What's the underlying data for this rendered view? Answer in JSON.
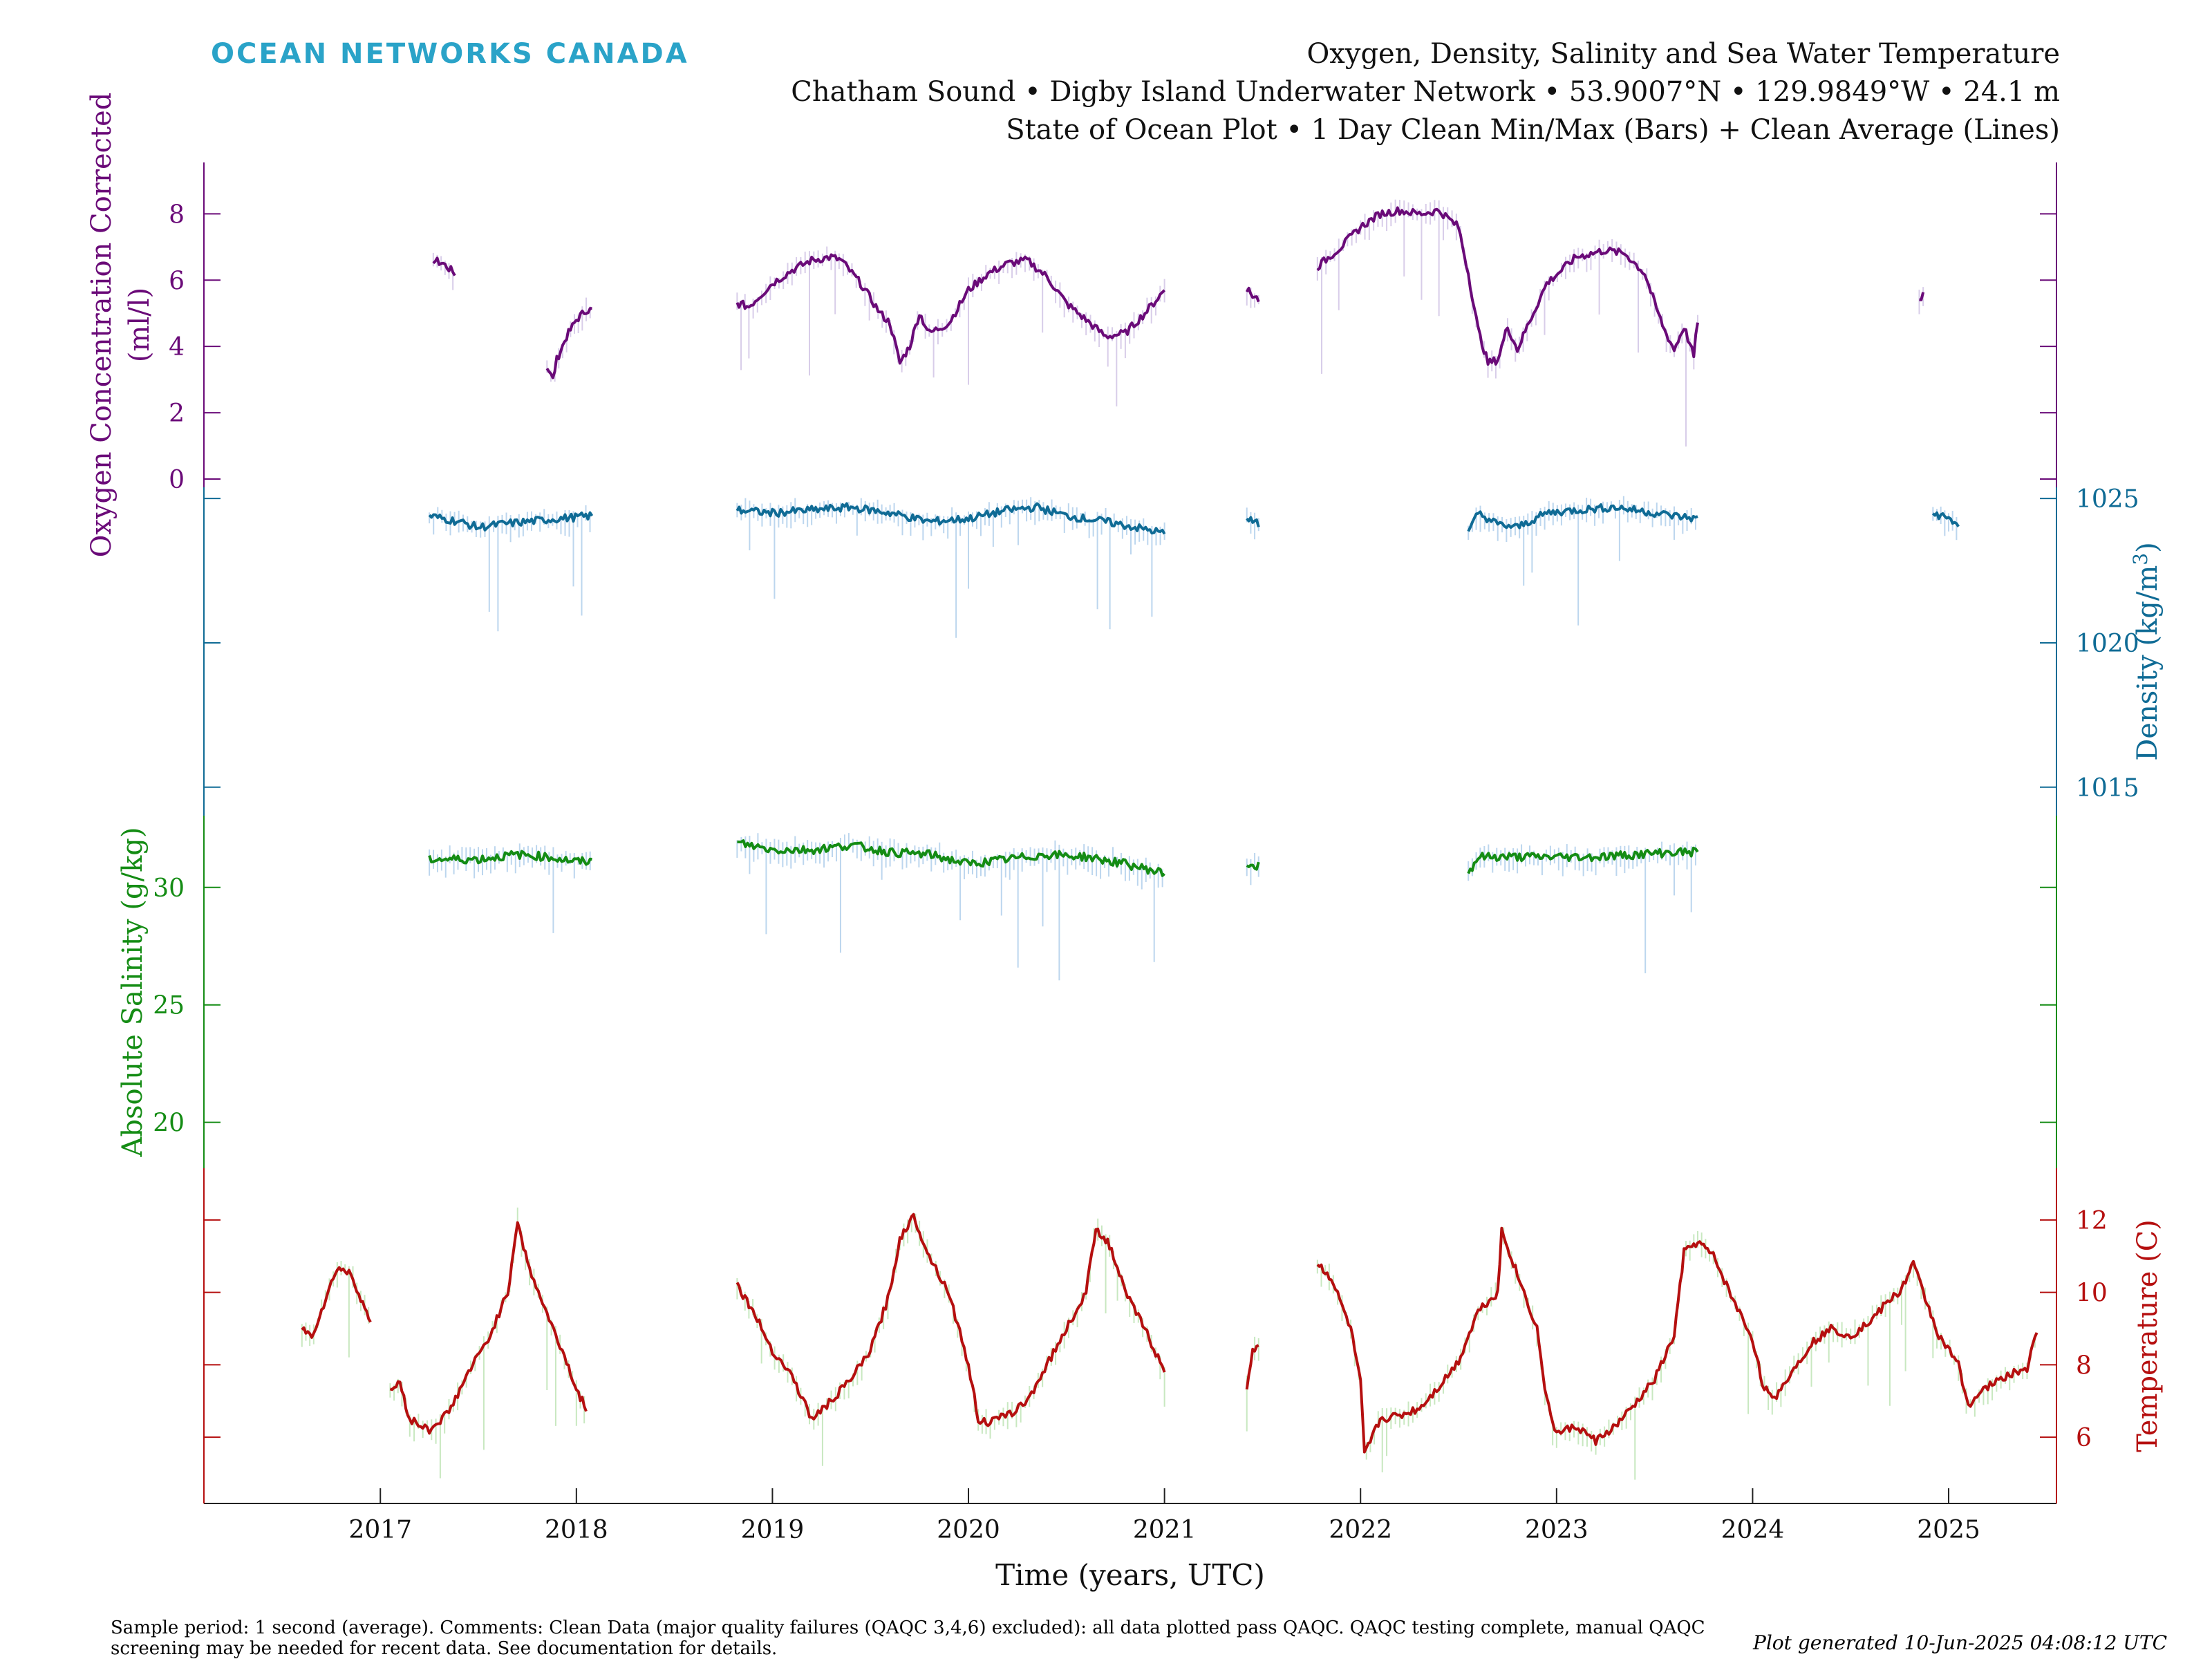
{
  "brand": "OCEAN NETWORKS CANADA",
  "titles": [
    "Oxygen, Density, Salinity and Sea Water Temperature",
    "Chatham Sound • Digby Island Underwater Network • 53.9007°N • 129.9849°W • 24.1 m",
    "State of Ocean Plot • 1 Day Clean Min/Max (Bars) + Clean Average (Lines)"
  ],
  "footer": "Sample period: 1 second (average). Comments: Clean Data (major quality failures (QAQC 3,4,6) excluded): all data plotted pass QAQC. QAQC testing complete, manual QAQC screening may be needed for recent data. See documentation for details.",
  "generated": "Plot generated 10-Jun-2025 04:08:12 UTC",
  "colors": {
    "oxygen": "#6a0a78",
    "density": "#0f6b95",
    "salinity": "#148c14",
    "temperature": "#b50f0f",
    "bars_blue": "#bcd6ee",
    "bars_lavender": "#d8cde9",
    "bars_green": "#c8e8c0"
  },
  "chart_data": {
    "type": "line",
    "xlabel": "Time (years, UTC)",
    "xlim": [
      2016.1,
      2025.55
    ],
    "x_ticks": [
      "2017",
      "2018",
      "2019",
      "2020",
      "2021",
      "2022",
      "2023",
      "2024",
      "2025"
    ],
    "series": [
      {
        "name": "Oxygen Concentration Corrected",
        "axis_label": [
          "Oxygen Concentration Corrected",
          "(ml/l)"
        ],
        "axis_side": "left",
        "ylim": [
          0,
          9.3
        ],
        "ticks": [
          0,
          2,
          4,
          6,
          8
        ],
        "segments": [
          [
            [
              2017.27,
              6.6
            ],
            [
              2017.32,
              6.5
            ],
            [
              2017.38,
              6.2
            ]
          ],
          [
            [
              2017.85,
              3.4
            ],
            [
              2017.88,
              3.0
            ],
            [
              2017.9,
              3.6
            ],
            [
              2017.95,
              4.3
            ],
            [
              2018.0,
              4.8
            ],
            [
              2018.05,
              5.1
            ],
            [
              2018.08,
              5.1
            ]
          ],
          [
            [
              2018.82,
              5.3
            ],
            [
              2018.88,
              5.2
            ],
            [
              2019.0,
              5.9
            ],
            [
              2019.1,
              6.3
            ],
            [
              2019.2,
              6.6
            ],
            [
              2019.3,
              6.7
            ],
            [
              2019.35,
              6.6
            ],
            [
              2019.45,
              5.9
            ],
            [
              2019.55,
              5.0
            ],
            [
              2019.6,
              4.7
            ],
            [
              2019.65,
              3.5
            ],
            [
              2019.7,
              4.0
            ],
            [
              2019.75,
              5.0
            ],
            [
              2019.8,
              4.4
            ],
            [
              2019.9,
              4.7
            ],
            [
              2020.0,
              5.7
            ],
            [
              2020.1,
              6.2
            ],
            [
              2020.2,
              6.5
            ],
            [
              2020.3,
              6.6
            ],
            [
              2020.4,
              6.1
            ],
            [
              2020.5,
              5.3
            ],
            [
              2020.6,
              4.8
            ],
            [
              2020.7,
              4.3
            ],
            [
              2020.8,
              4.4
            ],
            [
              2020.9,
              5.0
            ],
            [
              2021.0,
              5.7
            ]
          ],
          [
            [
              2021.42,
              5.7
            ],
            [
              2021.46,
              5.5
            ],
            [
              2021.48,
              5.4
            ]
          ],
          [
            [
              2021.78,
              6.4
            ],
            [
              2021.9,
              7.0
            ],
            [
              2022.0,
              7.6
            ],
            [
              2022.1,
              8.0
            ],
            [
              2022.2,
              8.1
            ],
            [
              2022.3,
              8.0
            ],
            [
              2022.4,
              8.1
            ],
            [
              2022.5,
              7.6
            ],
            [
              2022.55,
              6.2
            ],
            [
              2022.6,
              4.5
            ],
            [
              2022.65,
              3.5
            ],
            [
              2022.7,
              3.6
            ],
            [
              2022.75,
              4.6
            ],
            [
              2022.8,
              3.9
            ],
            [
              2022.85,
              4.6
            ],
            [
              2022.95,
              5.9
            ],
            [
              2023.1,
              6.7
            ],
            [
              2023.25,
              6.9
            ],
            [
              2023.35,
              6.8
            ],
            [
              2023.45,
              6.2
            ],
            [
              2023.5,
              5.3
            ],
            [
              2023.55,
              4.5
            ],
            [
              2023.6,
              3.9
            ],
            [
              2023.65,
              4.6
            ],
            [
              2023.7,
              3.7
            ],
            [
              2023.72,
              4.8
            ]
          ],
          [
            [
              2024.85,
              5.4
            ],
            [
              2024.87,
              5.6
            ]
          ]
        ]
      },
      {
        "name": "Density",
        "axis_label": [
          "Density (kg/m",
          "3",
          ")"
        ],
        "axis_side": "right",
        "ylim": [
          1014.3,
          1025.1
        ],
        "ticks": [
          1015,
          1020,
          1025
        ],
        "segments": [
          [
            [
              2017.25,
              1024.4
            ],
            [
              2017.4,
              1024.2
            ],
            [
              2017.5,
              1024.0
            ],
            [
              2017.6,
              1024.1
            ],
            [
              2017.75,
              1024.2
            ],
            [
              2017.9,
              1024.3
            ],
            [
              2018.08,
              1024.4
            ]
          ],
          [
            [
              2018.82,
              1024.6
            ],
            [
              2019.0,
              1024.5
            ],
            [
              2019.2,
              1024.6
            ],
            [
              2019.4,
              1024.7
            ],
            [
              2019.6,
              1024.5
            ],
            [
              2019.8,
              1024.2
            ],
            [
              2020.0,
              1024.3
            ],
            [
              2020.2,
              1024.6
            ],
            [
              2020.35,
              1024.7
            ],
            [
              2020.5,
              1024.4
            ],
            [
              2020.7,
              1024.2
            ],
            [
              2020.85,
              1024.0
            ],
            [
              2021.0,
              1023.8
            ]
          ],
          [
            [
              2021.42,
              1024.3
            ],
            [
              2021.48,
              1024.1
            ]
          ],
          [
            [
              2022.55,
              1023.8
            ],
            [
              2022.6,
              1024.5
            ],
            [
              2022.7,
              1024.1
            ],
            [
              2022.8,
              1024.0
            ],
            [
              2022.95,
              1024.5
            ],
            [
              2023.1,
              1024.6
            ],
            [
              2023.3,
              1024.7
            ],
            [
              2023.5,
              1024.5
            ],
            [
              2023.6,
              1024.4
            ],
            [
              2023.72,
              1024.3
            ]
          ],
          [
            [
              2024.92,
              1024.5
            ],
            [
              2025.0,
              1024.3
            ],
            [
              2025.05,
              1024.1
            ]
          ]
        ]
      },
      {
        "name": "Absolute Salinity",
        "axis_label": [
          "Absolute Salinity (g/kg)"
        ],
        "axis_side": "left",
        "ylim": [
          18.4,
          32.7
        ],
        "ticks": [
          20,
          25,
          30
        ],
        "segments": [
          [
            [
              2017.25,
              31.2
            ],
            [
              2017.5,
              31.2
            ],
            [
              2017.7,
              31.4
            ],
            [
              2017.85,
              31.3
            ],
            [
              2018.0,
              31.1
            ],
            [
              2018.08,
              31.1
            ]
          ],
          [
            [
              2018.82,
              31.9
            ],
            [
              2019.0,
              31.6
            ],
            [
              2019.2,
              31.6
            ],
            [
              2019.4,
              31.8
            ],
            [
              2019.6,
              31.5
            ],
            [
              2019.8,
              31.4
            ],
            [
              2020.0,
              31.0
            ],
            [
              2020.2,
              31.2
            ],
            [
              2020.4,
              31.4
            ],
            [
              2020.6,
              31.3
            ],
            [
              2020.8,
              31.0
            ],
            [
              2021.0,
              30.6
            ]
          ],
          [
            [
              2021.42,
              31.0
            ],
            [
              2021.48,
              30.9
            ]
          ],
          [
            [
              2022.55,
              30.6
            ],
            [
              2022.6,
              31.3
            ],
            [
              2022.8,
              31.3
            ],
            [
              2023.0,
              31.3
            ],
            [
              2023.2,
              31.3
            ],
            [
              2023.4,
              31.4
            ],
            [
              2023.6,
              31.5
            ],
            [
              2023.72,
              31.5
            ]
          ]
        ]
      },
      {
        "name": "Temperature",
        "axis_label": [
          "Temperature (C)"
        ],
        "axis_side": "right",
        "ylim": [
          4.4,
          13.2
        ],
        "ticks": [
          6,
          8,
          10,
          12
        ],
        "segments": [
          [
            [
              2016.6,
              9.0
            ],
            [
              2016.65,
              8.8
            ],
            [
              2016.72,
              9.8
            ],
            [
              2016.78,
              10.7
            ],
            [
              2016.85,
              10.5
            ],
            [
              2016.92,
              9.6
            ],
            [
              2016.95,
              9.1
            ]
          ],
          [
            [
              2017.05,
              7.3
            ],
            [
              2017.1,
              7.5
            ],
            [
              2017.15,
              6.5
            ],
            [
              2017.25,
              6.2
            ],
            [
              2017.35,
              6.7
            ],
            [
              2017.45,
              7.8
            ],
            [
              2017.55,
              8.7
            ],
            [
              2017.65,
              10.0
            ],
            [
              2017.7,
              12.0
            ],
            [
              2017.75,
              10.8
            ],
            [
              2017.85,
              9.4
            ],
            [
              2017.95,
              8.1
            ],
            [
              2018.0,
              7.3
            ],
            [
              2018.05,
              6.8
            ]
          ],
          [
            [
              2018.82,
              10.2
            ],
            [
              2018.9,
              9.5
            ],
            [
              2019.0,
              8.4
            ],
            [
              2019.1,
              7.7
            ],
            [
              2019.2,
              6.5
            ],
            [
              2019.3,
              7.0
            ],
            [
              2019.4,
              7.6
            ],
            [
              2019.5,
              8.4
            ],
            [
              2019.6,
              10.0
            ],
            [
              2019.65,
              11.5
            ],
            [
              2019.72,
              12.1
            ],
            [
              2019.8,
              11.0
            ],
            [
              2019.9,
              10.0
            ],
            [
              2020.0,
              8.0
            ],
            [
              2020.05,
              6.5
            ],
            [
              2020.1,
              6.4
            ],
            [
              2020.2,
              6.6
            ],
            [
              2020.3,
              7.0
            ],
            [
              2020.4,
              8.0
            ],
            [
              2020.5,
              9.0
            ],
            [
              2020.6,
              10.0
            ],
            [
              2020.65,
              11.8
            ],
            [
              2020.72,
              11.3
            ],
            [
              2020.8,
              10.0
            ],
            [
              2020.9,
              9.0
            ],
            [
              2021.0,
              7.8
            ]
          ],
          [
            [
              2021.42,
              7.4
            ],
            [
              2021.45,
              8.4
            ],
            [
              2021.48,
              8.6
            ]
          ],
          [
            [
              2021.78,
              10.8
            ],
            [
              2021.85,
              10.4
            ],
            [
              2021.95,
              9.0
            ],
            [
              2022.0,
              7.5
            ],
            [
              2022.02,
              5.5
            ],
            [
              2022.1,
              6.5
            ],
            [
              2022.2,
              6.6
            ],
            [
              2022.3,
              6.8
            ],
            [
              2022.4,
              7.4
            ],
            [
              2022.5,
              8.1
            ],
            [
              2022.6,
              9.5
            ],
            [
              2022.7,
              10.0
            ],
            [
              2022.72,
              11.7
            ],
            [
              2022.8,
              10.5
            ],
            [
              2022.9,
              9.0
            ],
            [
              2022.95,
              7.0
            ],
            [
              2023.0,
              6.1
            ],
            [
              2023.1,
              6.3
            ],
            [
              2023.2,
              5.9
            ],
            [
              2023.3,
              6.3
            ],
            [
              2023.4,
              6.9
            ],
            [
              2023.5,
              7.6
            ],
            [
              2023.6,
              8.8
            ],
            [
              2023.65,
              11.1
            ],
            [
              2023.72,
              11.4
            ],
            [
              2023.8,
              11.0
            ],
            [
              2023.9,
              9.8
            ],
            [
              2024.0,
              8.7
            ],
            [
              2024.05,
              7.5
            ],
            [
              2024.1,
              7.0
            ],
            [
              2024.2,
              7.8
            ],
            [
              2024.3,
              8.6
            ],
            [
              2024.4,
              9.0
            ],
            [
              2024.5,
              8.8
            ],
            [
              2024.6,
              9.2
            ],
            [
              2024.7,
              9.8
            ],
            [
              2024.75,
              10.0
            ],
            [
              2024.82,
              10.8
            ],
            [
              2024.87,
              10.0
            ],
            [
              2024.95,
              8.8
            ],
            [
              2025.05,
              8.0
            ],
            [
              2025.1,
              6.9
            ],
            [
              2025.2,
              7.4
            ],
            [
              2025.3,
              7.7
            ],
            [
              2025.4,
              7.9
            ],
            [
              2025.45,
              8.9
            ]
          ]
        ]
      }
    ]
  }
}
